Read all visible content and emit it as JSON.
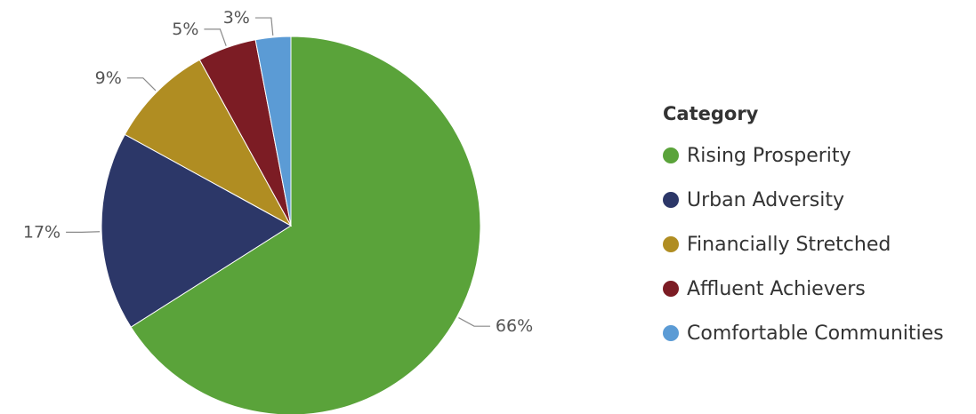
{
  "chart_data": {
    "type": "pie",
    "legend_title": "Category",
    "legend_position": "right",
    "slices": [
      {
        "name": "Rising Prosperity",
        "value": 66,
        "label": "66%",
        "color": "#5aa33a"
      },
      {
        "name": "Urban Adversity",
        "value": 17,
        "label": "17%",
        "color": "#2c3768"
      },
      {
        "name": "Financially Stretched",
        "value": 9,
        "label": "9%",
        "color": "#b08d22"
      },
      {
        "name": "Affluent Achievers",
        "value": 5,
        "label": "5%",
        "color": "#7c1c24"
      },
      {
        "name": "Comfortable Communities",
        "value": 3,
        "label": "3%",
        "color": "#5b9bd5"
      }
    ]
  }
}
